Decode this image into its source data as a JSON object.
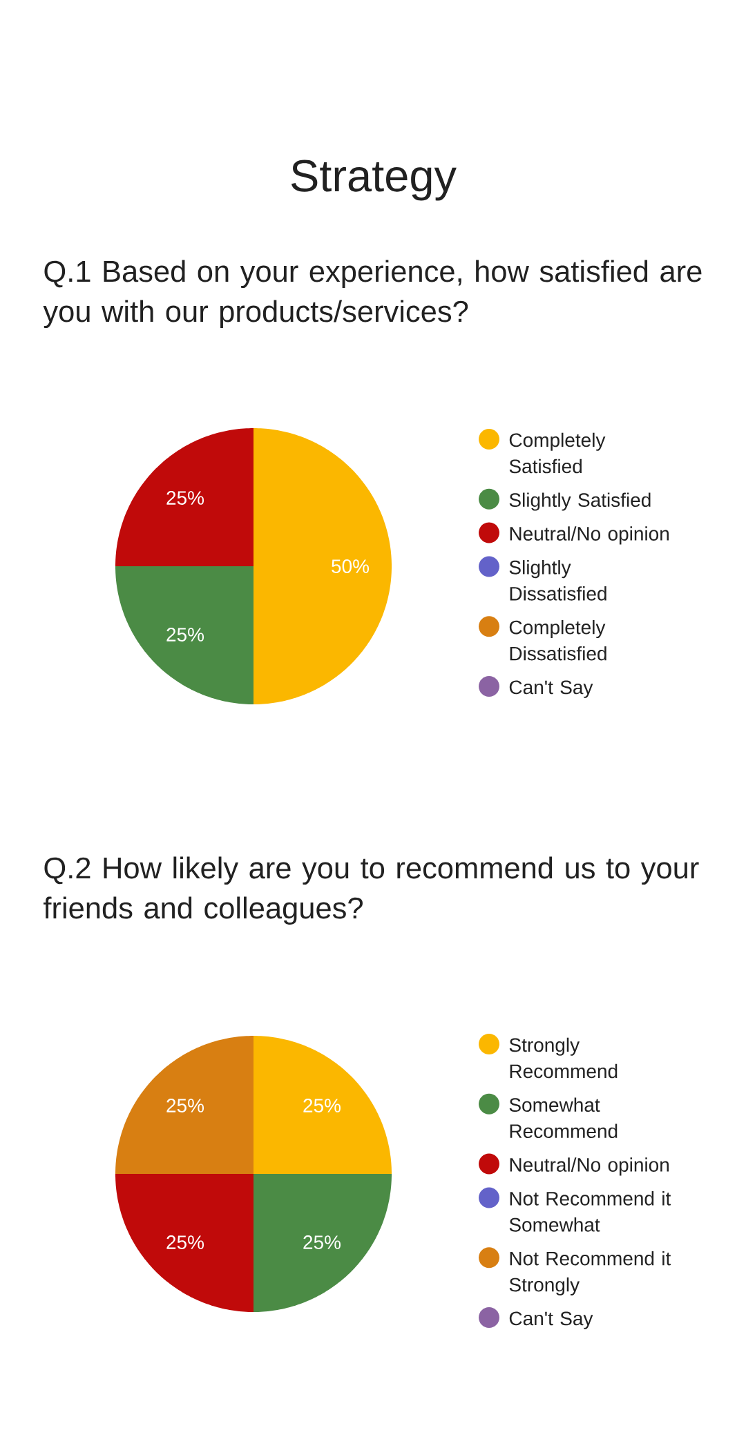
{
  "chart_data": [
    {
      "type": "pie",
      "title": "Strategy",
      "subtitle": "Q.1 Based on your experience, how satisfied are you with our products/services?",
      "categories": [
        "Completely Satisfied",
        "Slightly Satisfied",
        "Neutral/No opinion",
        "Slightly Dissatisfied",
        "Completely Dissatisfied",
        "Can't Say"
      ],
      "values": [
        50,
        25,
        25,
        0,
        0,
        0
      ],
      "colors": [
        "#fbb700",
        "#4b8b45",
        "#c00a0a",
        "#6362c9",
        "#d87f12",
        "#8b63a3"
      ],
      "value_labels": [
        "50%",
        "25%",
        "25%",
        null,
        null,
        null
      ],
      "legend": "right"
    },
    {
      "type": "pie",
      "title": "Q.2 How likely are you to recommend us to your friends and colleagues?",
      "categories": [
        "Strongly Recommend",
        "Somewhat Recommend",
        "Neutral/No opinion",
        "Not Recommend it Somewhat",
        "Not Recommend it Strongly",
        "Can't Say"
      ],
      "values": [
        25,
        25,
        25,
        0,
        25,
        0
      ],
      "colors": [
        "#fbb700",
        "#4b8b45",
        "#c00a0a",
        "#6362c9",
        "#d87f12",
        "#8b63a3"
      ],
      "value_labels": [
        "25%",
        "25%",
        "25%",
        null,
        "25%",
        null
      ],
      "legend": "right"
    }
  ]
}
